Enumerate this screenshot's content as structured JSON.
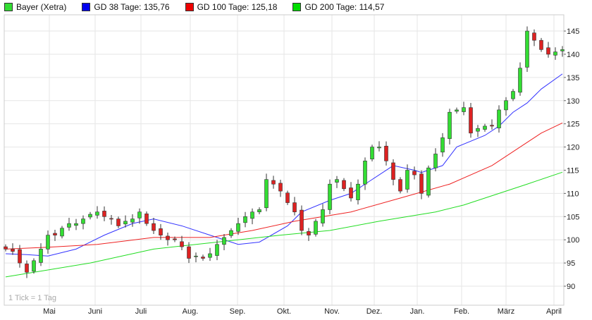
{
  "chart_data": {
    "type": "candlestick",
    "title": "Bayer (Xetra)",
    "legend": [
      {
        "label": "Bayer (Xetra)",
        "color": "#33dd33"
      },
      {
        "label": "GD 38 Tage: 135,76",
        "color": "#0000ee"
      },
      {
        "label": "GD 100 Tage: 125,18",
        "color": "#ee0000"
      },
      {
        "label": "GD 200 Tage: 114,57",
        "color": "#00dd00"
      }
    ],
    "legend_placement": "top-left",
    "note": "1 Tick = 1 Tag",
    "ylim": [
      85.9,
      148.5
    ],
    "yticks": [
      90,
      95,
      100,
      105,
      110,
      115,
      120,
      125,
      130,
      135,
      140,
      145
    ],
    "x_range": [
      0,
      79
    ],
    "months": [
      {
        "label": "Mai",
        "at": 6.2
      },
      {
        "label": "Juni",
        "at": 12.7
      },
      {
        "label": "Juli",
        "at": 19.2
      },
      {
        "label": "Aug.",
        "at": 26.2
      },
      {
        "label": "Sep.",
        "at": 32.9
      },
      {
        "label": "Okt.",
        "at": 39.5
      },
      {
        "label": "Nov.",
        "at": 46.3
      },
      {
        "label": "Dez.",
        "at": 52.3
      },
      {
        "label": "Jan.",
        "at": 58.4
      },
      {
        "label": "Feb.",
        "at": 64.7
      },
      {
        "label": "März",
        "at": 71
      },
      {
        "label": "April",
        "at": 77.8
      }
    ],
    "closes": [
      98,
      97.5,
      95,
      93,
      95.5,
      98,
      101,
      101,
      102.5,
      103.5,
      103.5,
      104.5,
      105.5,
      106,
      105,
      104.5,
      103,
      104,
      104.5,
      106,
      103.5,
      102,
      101,
      100,
      100,
      98.5,
      96,
      96.5,
      96,
      97,
      99,
      100.5,
      102,
      103.5,
      105,
      106,
      106.5,
      113,
      112,
      110.5,
      108,
      106,
      102,
      101,
      104,
      106.5,
      112,
      113,
      111,
      109,
      112,
      117,
      120,
      120,
      117,
      113,
      110.5,
      115,
      114,
      110,
      115.5,
      118.5,
      122,
      127.5,
      128,
      128.5,
      123,
      124,
      124.5,
      124.5,
      128,
      130,
      132,
      137,
      145,
      143,
      141,
      140,
      140.5,
      141
    ],
    "series": [
      {
        "name": "GD 38 Tage",
        "color": "#3333ff",
        "points": [
          [
            0,
            97
          ],
          [
            3,
            96.8
          ],
          [
            6,
            96.5
          ],
          [
            10,
            98
          ],
          [
            14,
            101
          ],
          [
            18,
            103.5
          ],
          [
            21,
            104.5
          ],
          [
            25,
            103
          ],
          [
            29,
            101
          ],
          [
            33,
            99
          ],
          [
            36,
            99.5
          ],
          [
            40,
            103
          ],
          [
            42,
            106
          ],
          [
            46,
            108.5
          ],
          [
            49,
            110
          ],
          [
            52,
            113
          ],
          [
            55,
            116
          ],
          [
            58,
            115
          ],
          [
            59,
            114.5
          ],
          [
            62,
            116
          ],
          [
            64,
            120
          ],
          [
            68,
            122.5
          ],
          [
            70,
            124.5
          ],
          [
            72,
            127.5
          ],
          [
            74,
            129.5
          ],
          [
            76,
            132.5
          ],
          [
            79,
            135.76
          ]
        ]
      },
      {
        "name": "GD 100 Tage",
        "color": "#ee2222",
        "points": [
          [
            0,
            98
          ],
          [
            6,
            98.4
          ],
          [
            13,
            99
          ],
          [
            21,
            100.5
          ],
          [
            29,
            100.5
          ],
          [
            35,
            102
          ],
          [
            41,
            104
          ],
          [
            49,
            106
          ],
          [
            56,
            109
          ],
          [
            63,
            112
          ],
          [
            69,
            116
          ],
          [
            73,
            120
          ],
          [
            76,
            123
          ],
          [
            79,
            125.18
          ]
        ]
      },
      {
        "name": "GD 200 Tage",
        "color": "#22dd22",
        "points": [
          [
            0,
            92
          ],
          [
            6,
            93.5
          ],
          [
            12,
            95
          ],
          [
            21,
            98
          ],
          [
            30,
            99.5
          ],
          [
            39,
            101
          ],
          [
            46,
            102
          ],
          [
            53,
            104
          ],
          [
            61,
            106
          ],
          [
            65,
            107.5
          ],
          [
            68,
            109
          ],
          [
            74,
            112
          ],
          [
            79,
            114.57
          ]
        ]
      }
    ]
  }
}
